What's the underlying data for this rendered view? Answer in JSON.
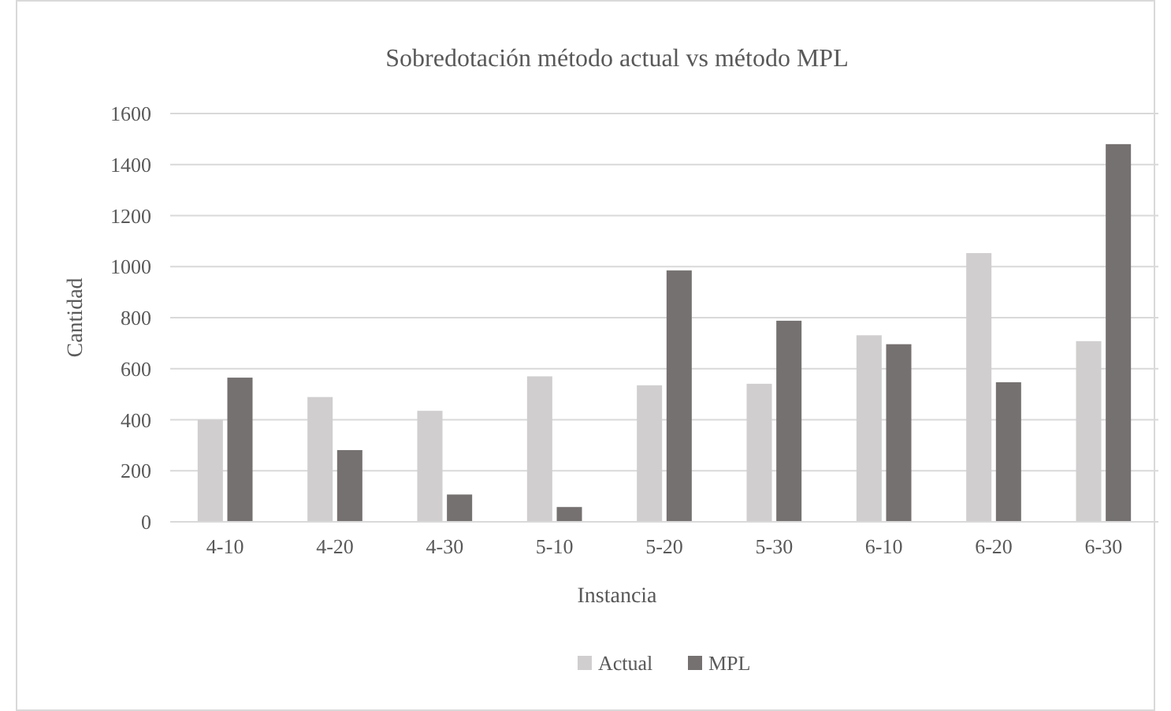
{
  "chart_data": {
    "type": "bar",
    "title": "Sobredotación método actual vs método MPL",
    "xlabel": "Instancia",
    "ylabel": "Cantidad",
    "categories": [
      "4-10",
      "4-20",
      "4-30",
      "5-10",
      "5-20",
      "5-30",
      "6-10",
      "6-20",
      "6-30"
    ],
    "series": [
      {
        "name": "Actual",
        "color": "#d0cece",
        "values": [
          400,
          489,
          435,
          570,
          535,
          541,
          731,
          1053,
          708
        ]
      },
      {
        "name": "MPL",
        "color": "#767171",
        "values": [
          565,
          281,
          107,
          58,
          985,
          788,
          696,
          547,
          1480
        ]
      }
    ],
    "ylim": [
      0,
      1600
    ],
    "yticks": [
      0,
      200,
      400,
      600,
      800,
      1000,
      1200,
      1400,
      1600
    ],
    "grid": "y",
    "legend": "bottom"
  }
}
